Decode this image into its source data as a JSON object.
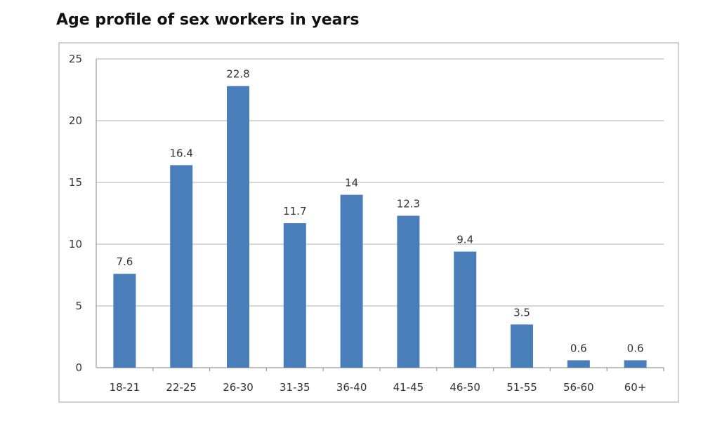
{
  "title": "Age profile of sex workers in years",
  "colors": {
    "bar": "#4a7ebb",
    "grid": "#bfbfbf",
    "axis": "#9a9a9a"
  },
  "chart_data": {
    "type": "bar",
    "title": "Age profile of sex workers in years",
    "xlabel": "",
    "ylabel": "",
    "categories": [
      "18-21",
      "22-25",
      "26-30",
      "31-35",
      "36-40",
      "41-45",
      "46-50",
      "51-55",
      "56-60",
      "60+"
    ],
    "values": [
      7.6,
      16.4,
      22.8,
      11.7,
      14,
      12.3,
      9.4,
      3.5,
      0.6,
      0.6
    ],
    "value_labels": [
      "7.6",
      "16.4",
      "22.8",
      "11.7",
      "14",
      "12.3",
      "9.4",
      "3.5",
      "0.6",
      "0.6"
    ],
    "ylim": [
      0,
      25
    ],
    "yticks": [
      "0",
      "5",
      "10",
      "15",
      "20",
      "25"
    ],
    "grid": true,
    "legend": "none"
  }
}
